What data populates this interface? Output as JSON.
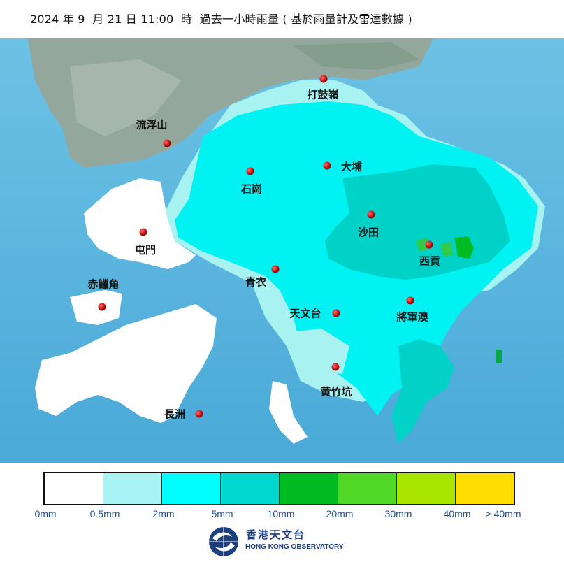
{
  "title": "2024 年 9  月 21 日 11:00  時  過去一小時雨量 ( 基於雨量計及雷達數據 )",
  "stations": [
    {
      "name": "打鼓嶺"
    },
    {
      "name": "流浮山"
    },
    {
      "name": "石崗"
    },
    {
      "name": "大埔"
    },
    {
      "name": "沙田"
    },
    {
      "name": "屯門"
    },
    {
      "name": "西貢"
    },
    {
      "name": "青衣"
    },
    {
      "name": "赤鱲角"
    },
    {
      "name": "天文台"
    },
    {
      "name": "將軍澳"
    },
    {
      "name": "黃竹坑"
    },
    {
      "name": "長洲"
    }
  ],
  "legend": {
    "colors": [
      "#ffffff",
      "#a8f4f4",
      "#00ffff",
      "#00d8d0",
      "#00bb22",
      "#4fd825",
      "#a8e600",
      "#ffdd00"
    ],
    "labels": [
      "0mm",
      "0.5mm",
      "2mm",
      "5mm",
      "10mm",
      "20mm",
      "30mm",
      "40mm",
      "> 40mm"
    ]
  },
  "logo": {
    "cn": "香港天文台",
    "en": "HONG KONG OBSERVATORY"
  },
  "colors": {
    "sea": "#5ab6de",
    "land_north": "#8fa59a"
  }
}
